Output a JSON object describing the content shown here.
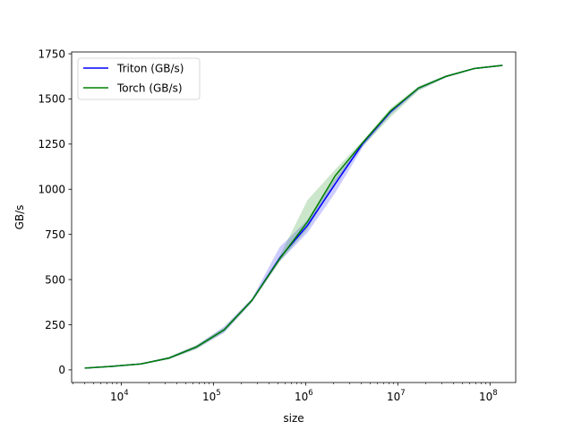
{
  "chart_data": {
    "type": "line",
    "title": "",
    "xlabel": "size",
    "ylabel": "GB/s",
    "xscale": "log",
    "xlim": [
      2900,
      190000000
    ],
    "ylim": [
      -70,
      1760
    ],
    "x_ticks": [
      10000,
      100000,
      1000000,
      10000000,
      100000000
    ],
    "x_tick_labels": [
      {
        "base": "10",
        "exp": "4"
      },
      {
        "base": "10",
        "exp": "5"
      },
      {
        "base": "10",
        "exp": "6"
      },
      {
        "base": "10",
        "exp": "7"
      },
      {
        "base": "10",
        "exp": "8"
      }
    ],
    "y_ticks": [
      0,
      250,
      500,
      750,
      1000,
      1250,
      1500,
      1750
    ],
    "grid": false,
    "legend_position": "top-left",
    "x": [
      4096,
      8192,
      16384,
      32768,
      65536,
      131072,
      262144,
      524288,
      1048576,
      2097152,
      4194304,
      8388608,
      16777216,
      33554432,
      67108864,
      134217728
    ],
    "series": [
      {
        "name": "Triton (GB/s)",
        "color": "#0000ff",
        "values": [
          10,
          20,
          33,
          65,
          127,
          222,
          385,
          620,
          800,
          1030,
          1255,
          1430,
          1560,
          1625,
          1668,
          1685
        ],
        "lower": [
          9,
          19,
          31,
          60,
          118,
          205,
          375,
          600,
          760,
          980,
          1235,
          1415,
          1550,
          1620,
          1665,
          1682
        ],
        "upper": [
          11,
          21,
          35,
          70,
          135,
          240,
          395,
          680,
          830,
          1060,
          1265,
          1440,
          1565,
          1630,
          1670,
          1688
        ]
      },
      {
        "name": "Torch (GB/s)",
        "color": "#008000",
        "values": [
          10,
          20,
          33,
          65,
          127,
          222,
          385,
          615,
          820,
          1075,
          1260,
          1435,
          1560,
          1625,
          1668,
          1685
        ],
        "lower": [
          9,
          19,
          31,
          58,
          115,
          210,
          375,
          600,
          780,
          1040,
          1240,
          1400,
          1545,
          1620,
          1665,
          1682
        ],
        "upper": [
          11,
          21,
          35,
          72,
          138,
          235,
          395,
          630,
          940,
          1110,
          1270,
          1450,
          1570,
          1632,
          1672,
          1690
        ]
      }
    ]
  }
}
